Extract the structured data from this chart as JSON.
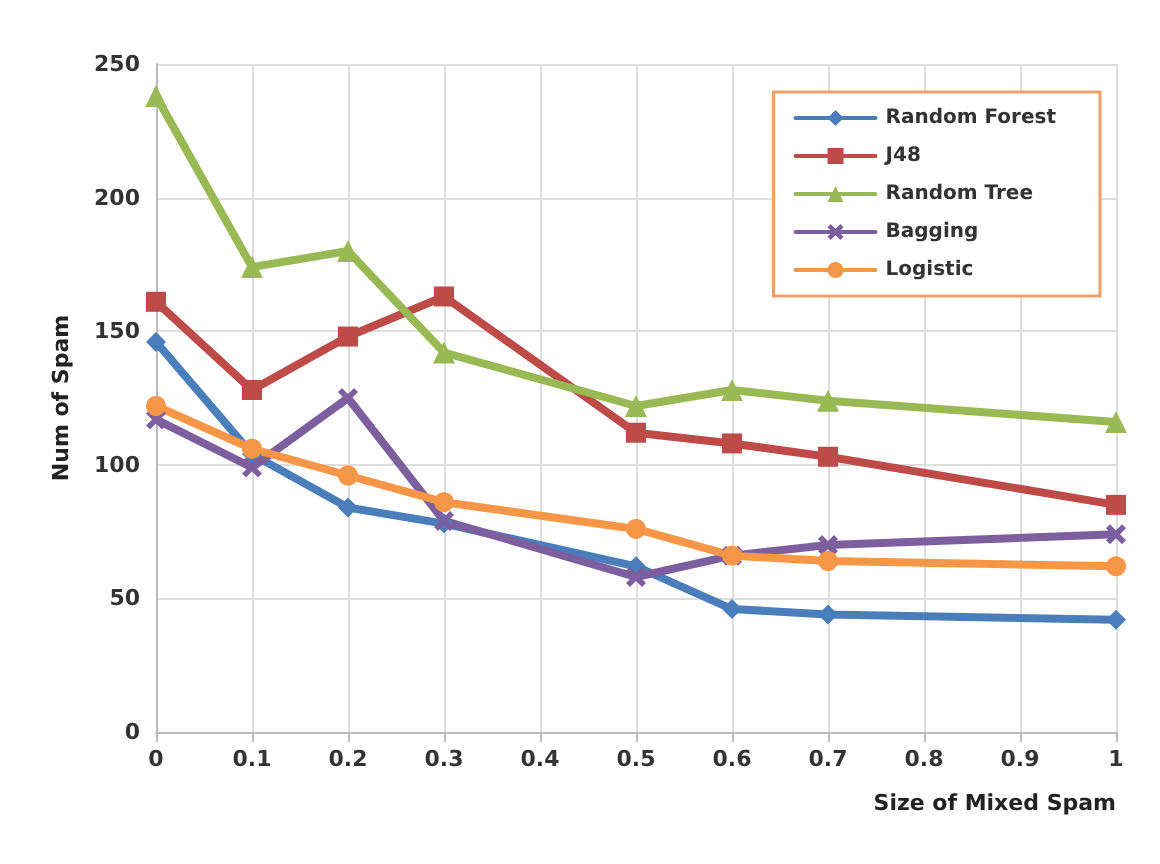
{
  "chart_data": {
    "type": "line",
    "xlabel": "Size of Mixed Spam",
    "ylabel": "Num of Spam",
    "x": [
      0,
      0.1,
      0.2,
      0.3,
      0.5,
      0.6,
      0.7,
      1
    ],
    "series": [
      {
        "name": "Random Forest",
        "color": "#4a7ebb",
        "marker": "diamond",
        "values": [
          146,
          104,
          84,
          78,
          62,
          46,
          44,
          42
        ]
      },
      {
        "name": "J48",
        "color": "#be4b48",
        "marker": "square",
        "values": [
          161,
          128,
          148,
          163,
          112,
          108,
          103,
          85
        ]
      },
      {
        "name": "Random Tree",
        "color": "#98b954",
        "marker": "triangle",
        "values": [
          238,
          174,
          180,
          142,
          122,
          128,
          124,
          116
        ]
      },
      {
        "name": "Bagging",
        "color": "#7d5fa0",
        "marker": "cross",
        "values": [
          117,
          99,
          125,
          79,
          58,
          66,
          70,
          74
        ]
      },
      {
        "name": "Logistic",
        "color": "#f79646",
        "marker": "circle",
        "values": [
          122,
          106,
          96,
          86,
          76,
          66,
          64,
          62
        ]
      }
    ],
    "xlim": [
      0,
      1
    ],
    "xticks": [
      0,
      0.1,
      0.2,
      0.3,
      0.4,
      0.5,
      0.6,
      0.7,
      0.8,
      0.9,
      1
    ],
    "ylim": [
      0,
      250
    ],
    "yticks": [
      0,
      50,
      100,
      150,
      200,
      250
    ],
    "grid": true,
    "legend": "top right",
    "line_style": "solid"
  }
}
